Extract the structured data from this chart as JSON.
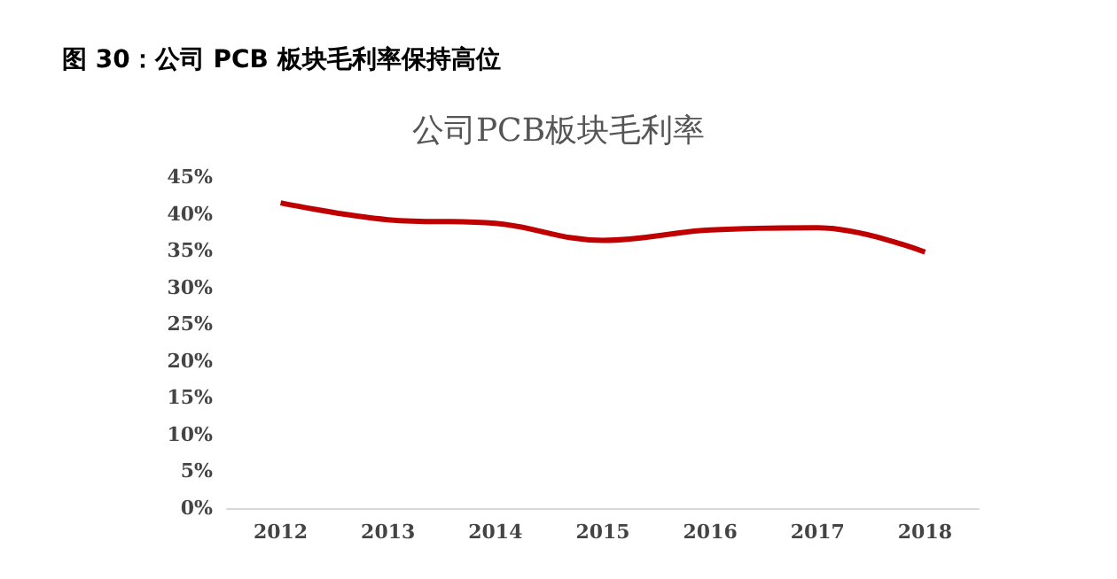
{
  "chart_data": {
    "type": "line",
    "title": "图 30：公司 PCB 板块毛利率保持高位",
    "subtitle": "公司PCB板块毛利率",
    "categories": [
      "2012",
      "2013",
      "2014",
      "2015",
      "2016",
      "2017",
      "2018"
    ],
    "series": [
      {
        "color": "#c00000",
        "values": [
          41.5,
          39.2,
          38.7,
          36.4,
          37.8,
          38.1,
          34.8
        ]
      }
    ],
    "ylim": [
      0,
      45
    ],
    "yticks": [
      {
        "value": 0,
        "label": "0%"
      },
      {
        "value": 5,
        "label": "5%"
      },
      {
        "value": 10,
        "label": "10%"
      },
      {
        "value": 15,
        "label": "15%"
      },
      {
        "value": 20,
        "label": "20%"
      },
      {
        "value": 25,
        "label": "25%"
      },
      {
        "value": 30,
        "label": "30%"
      },
      {
        "value": 35,
        "label": "35%"
      },
      {
        "value": 40,
        "label": "40%"
      },
      {
        "value": 45,
        "label": "45%"
      }
    ],
    "grid": false,
    "marker": "none"
  }
}
